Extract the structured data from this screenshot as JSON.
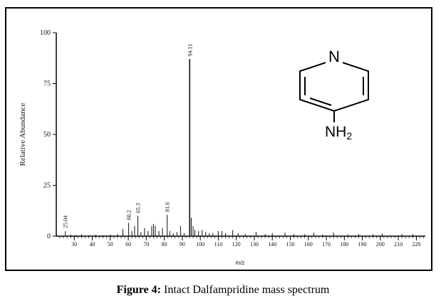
{
  "caption": {
    "label": "Figure 4:",
    "text": "Intact Dalfampridine mass spectrum"
  },
  "molecule": {
    "name": "4-aminopyridine",
    "ring_atom": "N",
    "substituent_main": "NH",
    "substituent_sub": "2"
  },
  "chart_data": {
    "type": "bar",
    "xlabel": "m/z",
    "ylabel": "Relative Abundance",
    "xlim": [
      20,
      225
    ],
    "ylim": [
      0,
      100
    ],
    "xticks": [
      30,
      40,
      50,
      60,
      70,
      80,
      90,
      100,
      110,
      120,
      130,
      140,
      150,
      160,
      170,
      180,
      190,
      200,
      210,
      220
    ],
    "yticks": [
      0,
      25,
      50,
      75,
      100
    ],
    "peaks": [
      {
        "mz": 25.04,
        "abundance": 2.5,
        "label": "25.04"
      },
      {
        "mz": 28,
        "abundance": 0.8
      },
      {
        "mz": 31,
        "abundance": 0.6
      },
      {
        "mz": 34,
        "abundance": 0.9
      },
      {
        "mz": 38,
        "abundance": 0.5
      },
      {
        "mz": 42,
        "abundance": 0.7
      },
      {
        "mz": 46,
        "abundance": 0.5
      },
      {
        "mz": 50,
        "abundance": 0.8
      },
      {
        "mz": 54,
        "abundance": 1.0
      },
      {
        "mz": 57,
        "abundance": 3.5
      },
      {
        "mz": 60.2,
        "abundance": 6.5,
        "label": "60.2"
      },
      {
        "mz": 62,
        "abundance": 2.5
      },
      {
        "mz": 63.5,
        "abundance": 5.0
      },
      {
        "mz": 65.3,
        "abundance": 10.0,
        "label": "65.3"
      },
      {
        "mz": 67,
        "abundance": 2.0
      },
      {
        "mz": 69,
        "abundance": 4.0
      },
      {
        "mz": 71,
        "abundance": 2.5
      },
      {
        "mz": 73,
        "abundance": 5.0
      },
      {
        "mz": 74,
        "abundance": 6.0
      },
      {
        "mz": 75,
        "abundance": 5.0
      },
      {
        "mz": 77,
        "abundance": 2.5
      },
      {
        "mz": 79,
        "abundance": 4.0
      },
      {
        "mz": 81.6,
        "abundance": 10.5,
        "label": "81.6"
      },
      {
        "mz": 83,
        "abundance": 2.5
      },
      {
        "mz": 85,
        "abundance": 1.5
      },
      {
        "mz": 87,
        "abundance": 2.0
      },
      {
        "mz": 89,
        "abundance": 5.0
      },
      {
        "mz": 91,
        "abundance": 1.5
      },
      {
        "mz": 94.11,
        "abundance": 87.0,
        "label": "94.11"
      },
      {
        "mz": 95,
        "abundance": 9.0
      },
      {
        "mz": 96,
        "abundance": 5.0
      },
      {
        "mz": 97,
        "abundance": 3.0
      },
      {
        "mz": 99,
        "abundance": 2.5
      },
      {
        "mz": 101,
        "abundance": 3.0
      },
      {
        "mz": 103,
        "abundance": 2.0
      },
      {
        "mz": 105,
        "abundance": 1.5
      },
      {
        "mz": 107,
        "abundance": 1.5
      },
      {
        "mz": 110,
        "abundance": 2.5
      },
      {
        "mz": 112,
        "abundance": 2.5
      },
      {
        "mz": 114,
        "abundance": 1.5
      },
      {
        "mz": 118,
        "abundance": 3.0
      },
      {
        "mz": 121,
        "abundance": 1.5
      },
      {
        "mz": 125,
        "abundance": 1.0
      },
      {
        "mz": 131,
        "abundance": 2.0
      },
      {
        "mz": 136,
        "abundance": 1.0
      },
      {
        "mz": 140,
        "abundance": 1.5
      },
      {
        "mz": 147,
        "abundance": 1.8
      },
      {
        "mz": 152,
        "abundance": 1.0
      },
      {
        "mz": 158,
        "abundance": 1.0
      },
      {
        "mz": 163,
        "abundance": 1.8
      },
      {
        "mz": 168,
        "abundance": 0.8
      },
      {
        "mz": 174,
        "abundance": 1.8
      },
      {
        "mz": 182,
        "abundance": 0.8
      },
      {
        "mz": 188,
        "abundance": 1.0
      },
      {
        "mz": 196,
        "abundance": 1.0
      },
      {
        "mz": 201,
        "abundance": 1.2
      },
      {
        "mz": 212,
        "abundance": 1.0
      },
      {
        "mz": 218,
        "abundance": 1.0
      }
    ]
  }
}
